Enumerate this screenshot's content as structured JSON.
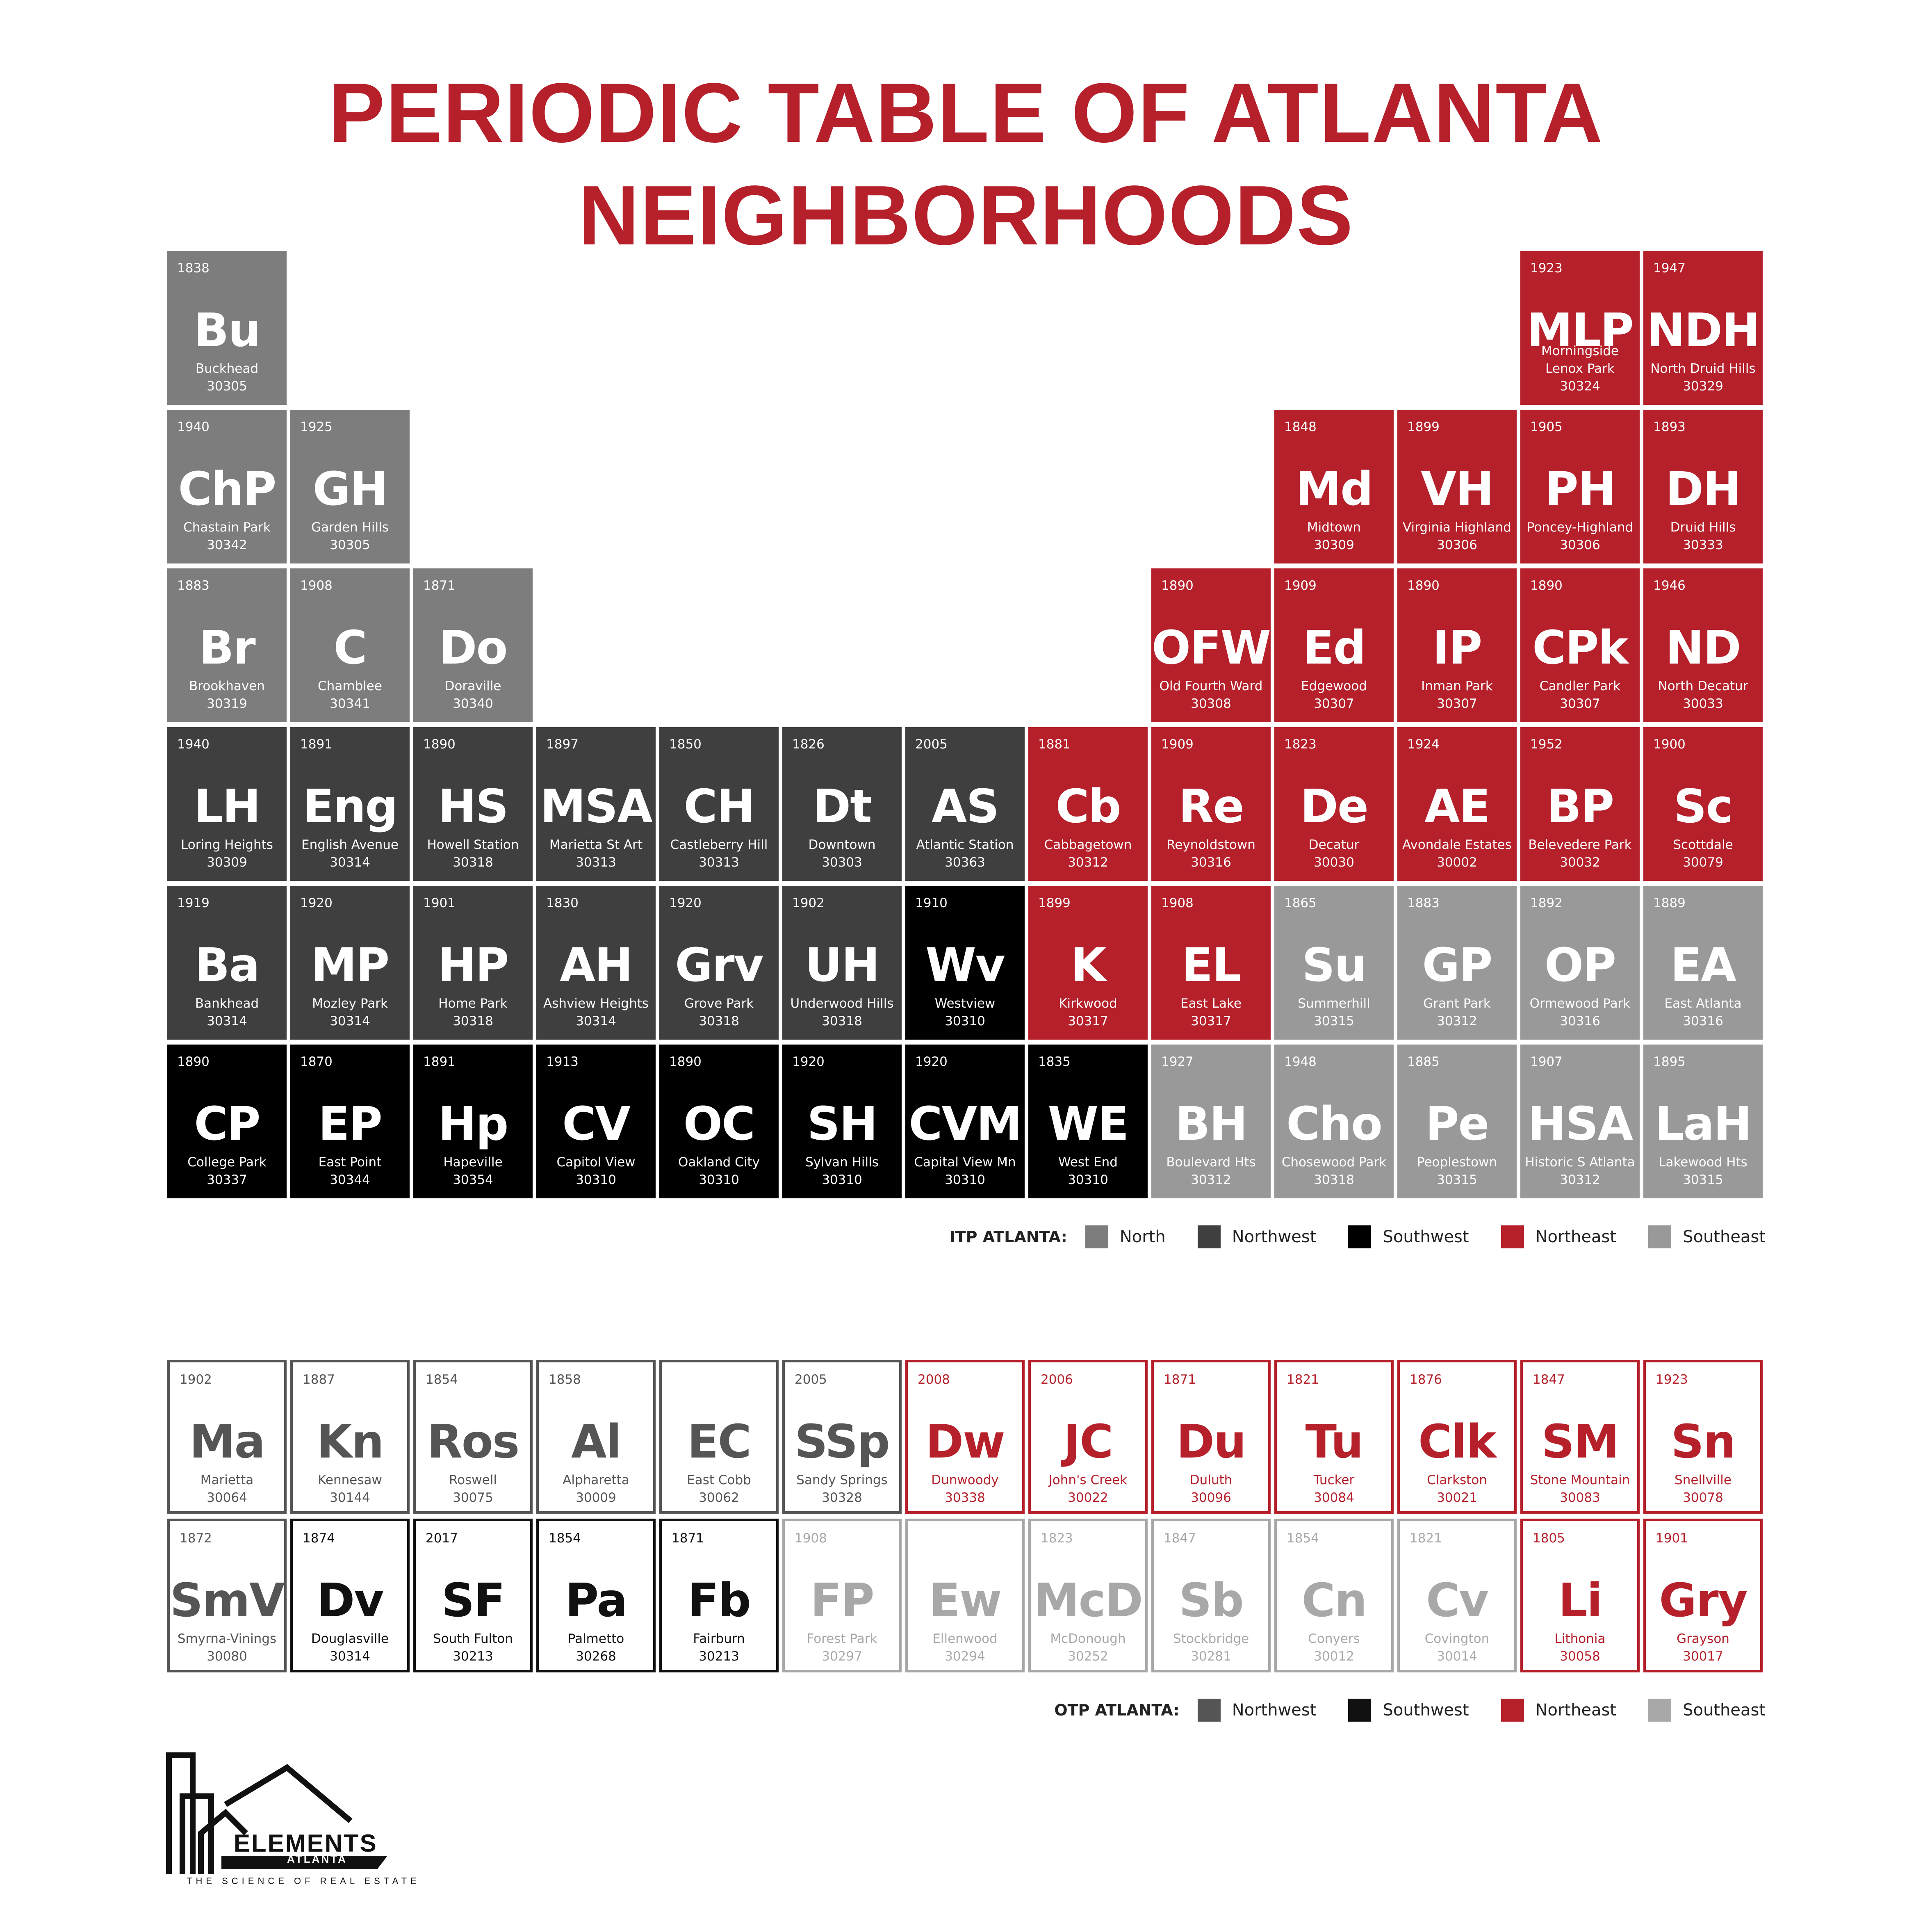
{
  "title": "PERIODIC TABLE OF ATLANTA NEIGHBORHOODS",
  "colors": {
    "north": "#7d7d7d",
    "northwest": "#3f3f3f",
    "southwest": "#000000",
    "northeast": "#b5202b",
    "southeast": "#999999",
    "otp_northwest": "#555555",
    "otp_southwest": "#111111",
    "otp_northeast": "#b5202b",
    "otp_southeast": "#a8a8a8"
  },
  "itp": [
    {
      "row": 0,
      "col": 0,
      "region": "north",
      "year": "1838",
      "sym": "Bu",
      "name": "Buckhead",
      "zip": "30305"
    },
    {
      "row": 0,
      "col": 11,
      "region": "northeast",
      "year": "1923",
      "sym": "MLP",
      "name": "Morningside Lenox Park",
      "zip": "30324"
    },
    {
      "row": 0,
      "col": 12,
      "region": "northeast",
      "year": "1947",
      "sym": "NDH",
      "name": "North Druid Hills",
      "zip": "30329"
    },
    {
      "row": 1,
      "col": 0,
      "region": "north",
      "year": "1940",
      "sym": "ChP",
      "name": "Chastain Park",
      "zip": "30342"
    },
    {
      "row": 1,
      "col": 1,
      "region": "north",
      "year": "1925",
      "sym": "GH",
      "name": "Garden Hills",
      "zip": "30305"
    },
    {
      "row": 1,
      "col": 9,
      "region": "northeast",
      "year": "1848",
      "sym": "Md",
      "name": "Midtown",
      "zip": "30309"
    },
    {
      "row": 1,
      "col": 10,
      "region": "northeast",
      "year": "1899",
      "sym": "VH",
      "name": "Virginia Highland",
      "zip": "30306"
    },
    {
      "row": 1,
      "col": 11,
      "region": "northeast",
      "year": "1905",
      "sym": "PH",
      "name": "Poncey-Highland",
      "zip": "30306"
    },
    {
      "row": 1,
      "col": 12,
      "region": "northeast",
      "year": "1893",
      "sym": "DH",
      "name": "Druid Hills",
      "zip": "30333"
    },
    {
      "row": 2,
      "col": 0,
      "region": "north",
      "year": "1883",
      "sym": "Br",
      "name": "Brookhaven",
      "zip": "30319"
    },
    {
      "row": 2,
      "col": 1,
      "region": "north",
      "year": "1908",
      "sym": "C",
      "name": "Chamblee",
      "zip": "30341"
    },
    {
      "row": 2,
      "col": 2,
      "region": "north",
      "year": "1871",
      "sym": "Do",
      "name": "Doraville",
      "zip": "30340"
    },
    {
      "row": 2,
      "col": 8,
      "region": "northeast",
      "year": "1890",
      "sym": "OFW",
      "name": "Old Fourth Ward",
      "zip": "30308"
    },
    {
      "row": 2,
      "col": 9,
      "region": "northeast",
      "year": "1909",
      "sym": "Ed",
      "name": "Edgewood",
      "zip": "30307"
    },
    {
      "row": 2,
      "col": 10,
      "region": "northeast",
      "year": "1890",
      "sym": "IP",
      "name": "Inman Park",
      "zip": "30307"
    },
    {
      "row": 2,
      "col": 11,
      "region": "northeast",
      "year": "1890",
      "sym": "CPk",
      "name": "Candler Park",
      "zip": "30307"
    },
    {
      "row": 2,
      "col": 12,
      "region": "northeast",
      "year": "1946",
      "sym": "ND",
      "name": "North Decatur",
      "zip": "30033"
    },
    {
      "row": 3,
      "col": 0,
      "region": "northwest",
      "year": "1940",
      "sym": "LH",
      "name": "Loring Heights",
      "zip": "30309"
    },
    {
      "row": 3,
      "col": 1,
      "region": "northwest",
      "year": "1891",
      "sym": "Eng",
      "name": "English Avenue",
      "zip": "30314"
    },
    {
      "row": 3,
      "col": 2,
      "region": "northwest",
      "year": "1890",
      "sym": "HS",
      "name": "Howell Station",
      "zip": "30318"
    },
    {
      "row": 3,
      "col": 3,
      "region": "northwest",
      "year": "1897",
      "sym": "MSA",
      "name": "Marietta St Art",
      "zip": "30313"
    },
    {
      "row": 3,
      "col": 4,
      "region": "northwest",
      "year": "1850",
      "sym": "CH",
      "name": "Castleberry Hill",
      "zip": "30313"
    },
    {
      "row": 3,
      "col": 5,
      "region": "northwest",
      "year": "1826",
      "sym": "Dt",
      "name": "Downtown",
      "zip": "30303"
    },
    {
      "row": 3,
      "col": 6,
      "region": "northwest",
      "year": "2005",
      "sym": "AS",
      "name": "Atlantic Station",
      "zip": "30363"
    },
    {
      "row": 3,
      "col": 7,
      "region": "northeast",
      "year": "1881",
      "sym": "Cb",
      "name": "Cabbagetown",
      "zip": "30312"
    },
    {
      "row": 3,
      "col": 8,
      "region": "northeast",
      "year": "1909",
      "sym": "Re",
      "name": "Reynoldstown",
      "zip": "30316"
    },
    {
      "row": 3,
      "col": 9,
      "region": "northeast",
      "year": "1823",
      "sym": "De",
      "name": "Decatur",
      "zip": "30030"
    },
    {
      "row": 3,
      "col": 10,
      "region": "northeast",
      "year": "1924",
      "sym": "AE",
      "name": "Avondale Estates",
      "zip": "30002"
    },
    {
      "row": 3,
      "col": 11,
      "region": "northeast",
      "year": "1952",
      "sym": "BP",
      "name": "Belevedere Park",
      "zip": "30032"
    },
    {
      "row": 3,
      "col": 12,
      "region": "northeast",
      "year": "1900",
      "sym": "Sc",
      "name": "Scottdale",
      "zip": "30079"
    },
    {
      "row": 4,
      "col": 0,
      "region": "northwest",
      "year": "1919",
      "sym": "Ba",
      "name": "Bankhead",
      "zip": "30314"
    },
    {
      "row": 4,
      "col": 1,
      "region": "northwest",
      "year": "1920",
      "sym": "MP",
      "name": "Mozley Park",
      "zip": "30314"
    },
    {
      "row": 4,
      "col": 2,
      "region": "northwest",
      "year": "1901",
      "sym": "HP",
      "name": "Home Park",
      "zip": "30318"
    },
    {
      "row": 4,
      "col": 3,
      "region": "northwest",
      "year": "1830",
      "sym": "AH",
      "name": "Ashview Heights",
      "zip": "30314"
    },
    {
      "row": 4,
      "col": 4,
      "region": "northwest",
      "year": "1920",
      "sym": "Grv",
      "name": "Grove Park",
      "zip": "30318"
    },
    {
      "row": 4,
      "col": 5,
      "region": "northwest",
      "year": "1902",
      "sym": "UH",
      "name": "Underwood Hills",
      "zip": "30318"
    },
    {
      "row": 4,
      "col": 6,
      "region": "southwest",
      "year": "1910",
      "sym": "Wv",
      "name": "Westview",
      "zip": "30310"
    },
    {
      "row": 4,
      "col": 7,
      "region": "northeast",
      "year": "1899",
      "sym": "K",
      "name": "Kirkwood",
      "zip": "30317"
    },
    {
      "row": 4,
      "col": 8,
      "region": "northeast",
      "year": "1908",
      "sym": "EL",
      "name": "East Lake",
      "zip": "30317"
    },
    {
      "row": 4,
      "col": 9,
      "region": "southeast",
      "year": "1865",
      "sym": "Su",
      "name": "Summerhill",
      "zip": "30315"
    },
    {
      "row": 4,
      "col": 10,
      "region": "southeast",
      "year": "1883",
      "sym": "GP",
      "name": "Grant Park",
      "zip": "30312"
    },
    {
      "row": 4,
      "col": 11,
      "region": "southeast",
      "year": "1892",
      "sym": "OP",
      "name": "Ormewood Park",
      "zip": "30316"
    },
    {
      "row": 4,
      "col": 12,
      "region": "southeast",
      "year": "1889",
      "sym": "EA",
      "name": "East Atlanta",
      "zip": "30316"
    },
    {
      "row": 5,
      "col": 0,
      "region": "southwest",
      "year": "1890",
      "sym": "CP",
      "name": "College Park",
      "zip": "30337"
    },
    {
      "row": 5,
      "col": 1,
      "region": "southwest",
      "year": "1870",
      "sym": "EP",
      "name": "East Point",
      "zip": "30344"
    },
    {
      "row": 5,
      "col": 2,
      "region": "southwest",
      "year": "1891",
      "sym": "Hp",
      "name": "Hapeville",
      "zip": "30354"
    },
    {
      "row": 5,
      "col": 3,
      "region": "southwest",
      "year": "1913",
      "sym": "CV",
      "name": "Capitol View",
      "zip": "30310"
    },
    {
      "row": 5,
      "col": 4,
      "region": "southwest",
      "year": "1890",
      "sym": "OC",
      "name": "Oakland City",
      "zip": "30310"
    },
    {
      "row": 5,
      "col": 5,
      "region": "southwest",
      "year": "1920",
      "sym": "SH",
      "name": "Sylvan Hills",
      "zip": "30310"
    },
    {
      "row": 5,
      "col": 6,
      "region": "southwest",
      "year": "1920",
      "sym": "CVM",
      "name": "Capital View Mn",
      "zip": "30310"
    },
    {
      "row": 5,
      "col": 7,
      "region": "southwest",
      "year": "1835",
      "sym": "WE",
      "name": "West End",
      "zip": "30310"
    },
    {
      "row": 5,
      "col": 8,
      "region": "southeast",
      "year": "1927",
      "sym": "BH",
      "name": "Boulevard Hts",
      "zip": "30312"
    },
    {
      "row": 5,
      "col": 9,
      "region": "southeast",
      "year": "1948",
      "sym": "Cho",
      "name": "Chosewood Park",
      "zip": "30318"
    },
    {
      "row": 5,
      "col": 10,
      "region": "southeast",
      "year": "1885",
      "sym": "Pe",
      "name": "Peoplestown",
      "zip": "30315"
    },
    {
      "row": 5,
      "col": 11,
      "region": "southeast",
      "year": "1907",
      "sym": "HSA",
      "name": "Historic S Atlanta",
      "zip": "30312"
    },
    {
      "row": 5,
      "col": 12,
      "region": "southeast",
      "year": "1895",
      "sym": "LaH",
      "name": "Lakewood Hts",
      "zip": "30315"
    }
  ],
  "itp_legend": {
    "label": "ITP ATLANTA:",
    "items": [
      {
        "label": "North",
        "region": "north"
      },
      {
        "label": "Northwest",
        "region": "northwest"
      },
      {
        "label": "Southwest",
        "region": "southwest"
      },
      {
        "label": "Northeast",
        "region": "northeast"
      },
      {
        "label": "Southeast",
        "region": "southeast"
      }
    ]
  },
  "otp": [
    {
      "row": 0,
      "col": 0,
      "region": "otp_northwest",
      "year": "1902",
      "sym": "Ma",
      "name": "Marietta",
      "zip": "30064"
    },
    {
      "row": 0,
      "col": 1,
      "region": "otp_northwest",
      "year": "1887",
      "sym": "Kn",
      "name": "Kennesaw",
      "zip": "30144"
    },
    {
      "row": 0,
      "col": 2,
      "region": "otp_northwest",
      "year": "1854",
      "sym": "Ros",
      "name": "Roswell",
      "zip": "30075"
    },
    {
      "row": 0,
      "col": 3,
      "region": "otp_northwest",
      "year": "1858",
      "sym": "Al",
      "name": "Alpharetta",
      "zip": "30009"
    },
    {
      "row": 0,
      "col": 4,
      "region": "otp_northwest",
      "year": "",
      "sym": "EC",
      "name": "East Cobb",
      "zip": "30062"
    },
    {
      "row": 0,
      "col": 5,
      "region": "otp_northwest",
      "year": "2005",
      "sym": "SSp",
      "name": "Sandy Springs",
      "zip": "30328"
    },
    {
      "row": 0,
      "col": 6,
      "region": "otp_northeast",
      "year": "2008",
      "sym": "Dw",
      "name": "Dunwoody",
      "zip": "30338"
    },
    {
      "row": 0,
      "col": 7,
      "region": "otp_northeast",
      "year": "2006",
      "sym": "JC",
      "name": "John's Creek",
      "zip": "30022"
    },
    {
      "row": 0,
      "col": 8,
      "region": "otp_northeast",
      "year": "1871",
      "sym": "Du",
      "name": "Duluth",
      "zip": "30096"
    },
    {
      "row": 0,
      "col": 9,
      "region": "otp_northeast",
      "year": "1821",
      "sym": "Tu",
      "name": "Tucker",
      "zip": "30084"
    },
    {
      "row": 0,
      "col": 10,
      "region": "otp_northeast",
      "year": "1876",
      "sym": "Clk",
      "name": "Clarkston",
      "zip": "30021"
    },
    {
      "row": 0,
      "col": 11,
      "region": "otp_northeast",
      "year": "1847",
      "sym": "SM",
      "name": "Stone Mountain",
      "zip": "30083"
    },
    {
      "row": 0,
      "col": 12,
      "region": "otp_northeast",
      "year": "1923",
      "sym": "Sn",
      "name": "Snellville",
      "zip": "30078"
    },
    {
      "row": 1,
      "col": 0,
      "region": "otp_northwest",
      "year": "1872",
      "sym": "SmV",
      "name": "Smyrna-Vinings",
      "zip": "30080"
    },
    {
      "row": 1,
      "col": 1,
      "region": "otp_southwest",
      "year": "1874",
      "sym": "Dv",
      "name": "Douglasville",
      "zip": "30314"
    },
    {
      "row": 1,
      "col": 2,
      "region": "otp_southwest",
      "year": "2017",
      "sym": "SF",
      "name": "South Fulton",
      "zip": "30213"
    },
    {
      "row": 1,
      "col": 3,
      "region": "otp_southwest",
      "year": "1854",
      "sym": "Pa",
      "name": "Palmetto",
      "zip": "30268"
    },
    {
      "row": 1,
      "col": 4,
      "region": "otp_southwest",
      "year": "1871",
      "sym": "Fb",
      "name": "Fairburn",
      "zip": "30213"
    },
    {
      "row": 1,
      "col": 5,
      "region": "otp_southeast",
      "year": "1908",
      "sym": "FP",
      "name": "Forest Park",
      "zip": "30297"
    },
    {
      "row": 1,
      "col": 6,
      "region": "otp_southeast",
      "year": "",
      "sym": "Ew",
      "name": "Ellenwood",
      "zip": "30294"
    },
    {
      "row": 1,
      "col": 7,
      "region": "otp_southeast",
      "year": "1823",
      "sym": "McD",
      "name": "McDonough",
      "zip": "30252"
    },
    {
      "row": 1,
      "col": 8,
      "region": "otp_southeast",
      "year": "1847",
      "sym": "Sb",
      "name": "Stockbridge",
      "zip": "30281"
    },
    {
      "row": 1,
      "col": 9,
      "region": "otp_southeast",
      "year": "1854",
      "sym": "Cn",
      "name": "Conyers",
      "zip": "30012"
    },
    {
      "row": 1,
      "col": 10,
      "region": "otp_southeast",
      "year": "1821",
      "sym": "Cv",
      "name": "Covington",
      "zip": "30014"
    },
    {
      "row": 1,
      "col": 11,
      "region": "otp_northeast",
      "year": "1805",
      "sym": "Li",
      "name": "Lithonia",
      "zip": "30058"
    },
    {
      "row": 1,
      "col": 12,
      "region": "otp_northeast",
      "year": "1901",
      "sym": "Gry",
      "name": "Grayson",
      "zip": "30017"
    }
  ],
  "otp_legend": {
    "label": "OTP ATLANTA:",
    "items": [
      {
        "label": "Northwest",
        "region": "northwest"
      },
      {
        "label": "Southwest",
        "region": "southwest"
      },
      {
        "label": "Northeast",
        "region": "northeast"
      },
      {
        "label": "Southeast",
        "region": "southeast"
      }
    ]
  },
  "logo": {
    "name": "ELEMENTS",
    "sub": "ATLANTA",
    "tagline": "THE SCIENCE OF REAL ESTATE"
  }
}
